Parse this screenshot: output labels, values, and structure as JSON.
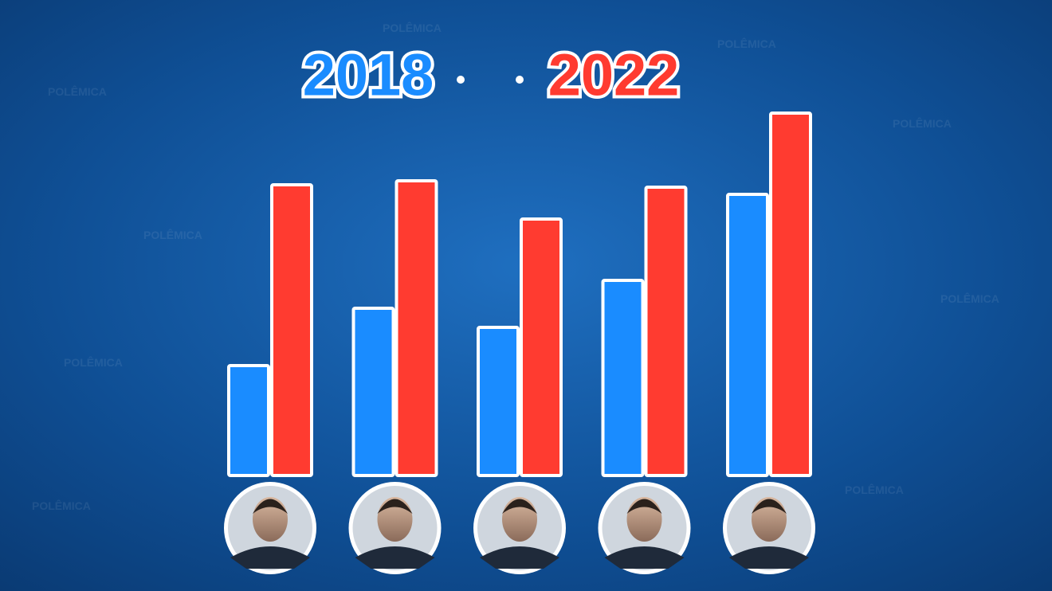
{
  "chart_data": {
    "type": "bar",
    "categories": [
      null,
      null,
      null,
      null,
      null
    ],
    "series": [
      {
        "name": "2018",
        "color": "#1a8cff",
        "values": [
          138,
          210,
          186,
          245,
          353
        ]
      },
      {
        "name": "2022",
        "color": "#ff3b30",
        "values": [
          365,
          370,
          322,
          362,
          455
        ]
      }
    ],
    "ylim": [
      0,
      460
    ]
  }
}
